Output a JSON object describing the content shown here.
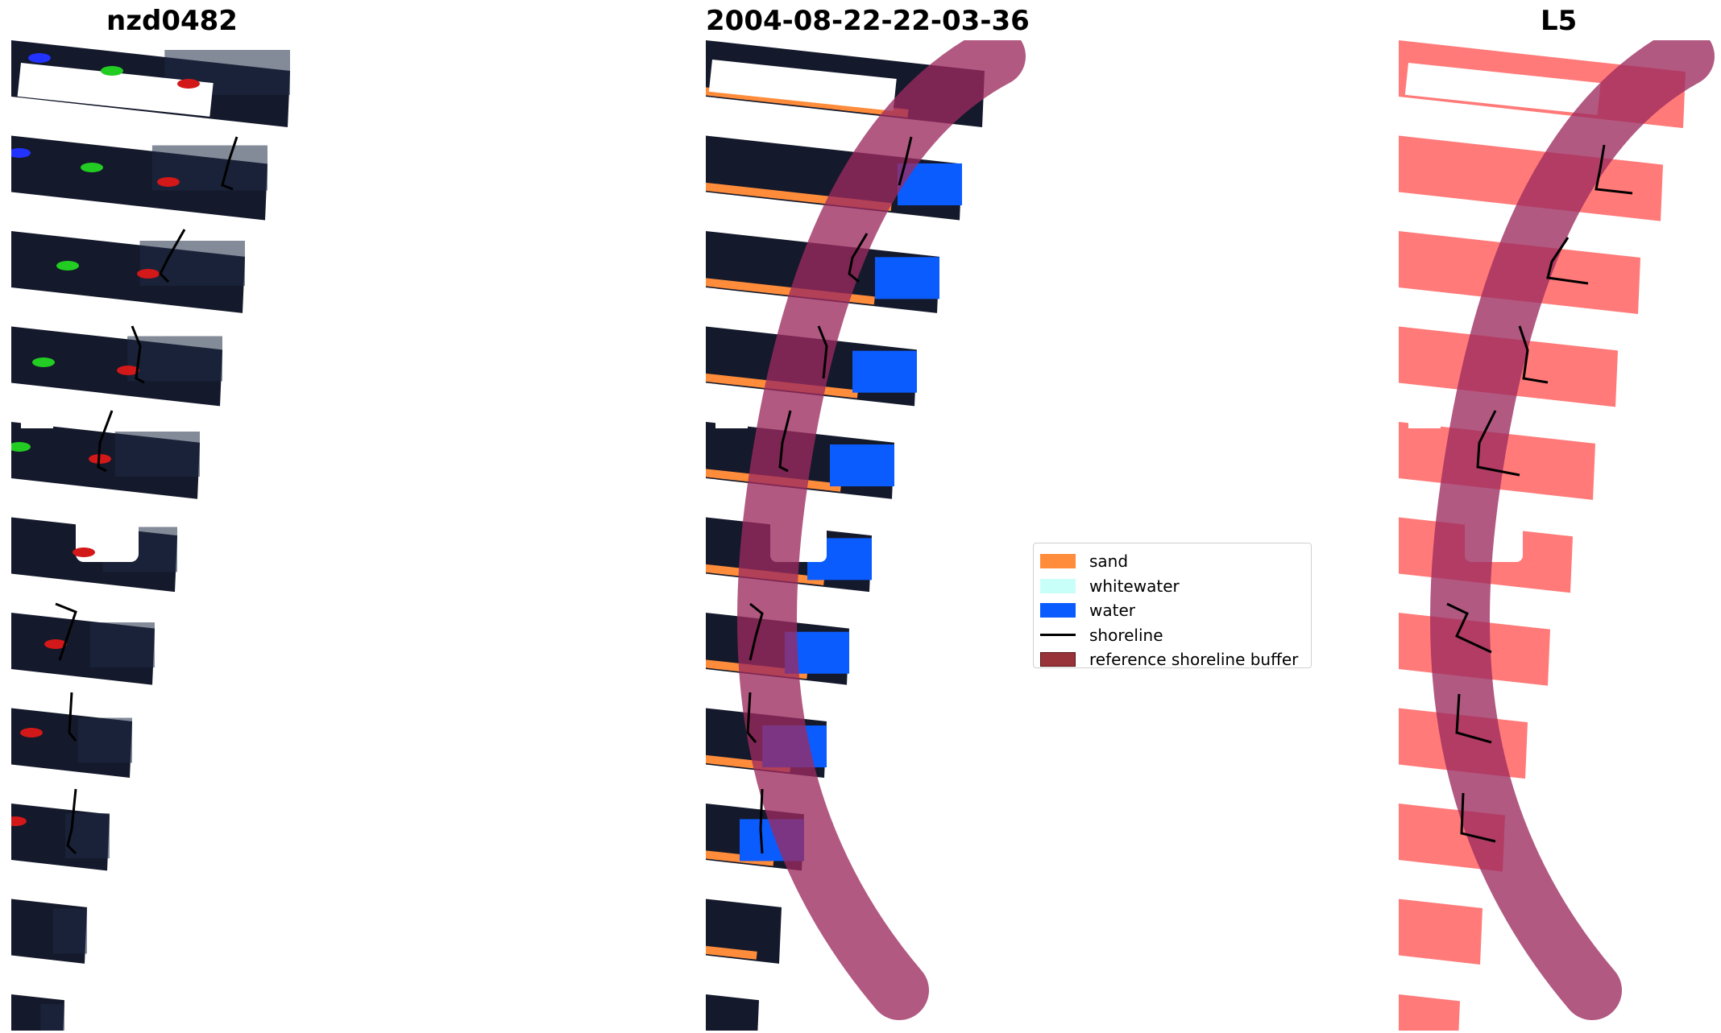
{
  "panels": [
    {
      "title": "nzd0482"
    },
    {
      "title": "2004-08-22-22-03-36"
    },
    {
      "title": "L5"
    }
  ],
  "colors": {
    "sand": "#ff8c3a",
    "whitewater": "#c9fff9",
    "water": "#0a5cff",
    "shoreline": "#000000",
    "buffer": "#9c2a5f",
    "buffer_legend": "#99333a",
    "image_dark": "#14192b",
    "mask_pink": "#ff7a78"
  },
  "legend": {
    "items": [
      {
        "label": "sand",
        "kind": "patch",
        "color": "#ff8c3a"
      },
      {
        "label": "whitewater",
        "kind": "patch",
        "color": "#c9fff9"
      },
      {
        "label": "water",
        "kind": "patch",
        "color": "#0a5cff"
      },
      {
        "label": "shoreline",
        "kind": "line",
        "color": "#000000"
      },
      {
        "label": "reference shoreline buffer",
        "kind": "patch",
        "color": "#99333a"
      }
    ]
  }
}
